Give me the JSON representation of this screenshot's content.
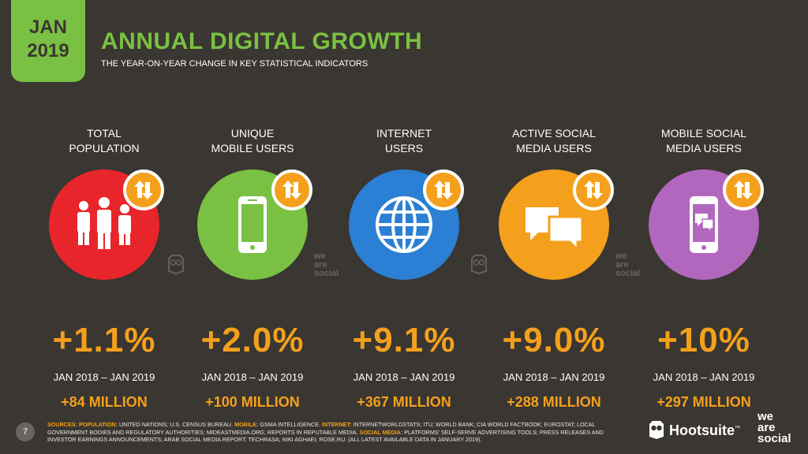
{
  "badge": {
    "line1": "JAN",
    "line2": "2019"
  },
  "header": {
    "title": "ANNUAL DIGITAL GROWTH",
    "subtitle": "THE YEAR-ON-YEAR CHANGE IN KEY STATISTICAL INDICATORS"
  },
  "stats": [
    {
      "head1": "TOTAL",
      "head2": "POPULATION",
      "pct": "+1.1%",
      "range": "JAN 2018 – JAN 2019",
      "abs": "+84 MILLION",
      "color": "#e8252a",
      "icon": "people-icon"
    },
    {
      "head1": "UNIQUE",
      "head2": "MOBILE USERS",
      "pct": "+2.0%",
      "range": "JAN 2018 – JAN 2019",
      "abs": "+100 MILLION",
      "color": "#7ac143",
      "icon": "mobile-phone-icon"
    },
    {
      "head1": "INTERNET",
      "head2": "USERS",
      "pct": "+9.1%",
      "range": "JAN 2018 – JAN 2019",
      "abs": "+367 MILLION",
      "color": "#2b7fd4",
      "icon": "globe-icon"
    },
    {
      "head1": "ACTIVE SOCIAL",
      "head2": "MEDIA USERS",
      "pct": "+9.0%",
      "range": "JAN 2018 – JAN 2019",
      "abs": "+288 MILLION",
      "color": "#f4a01c",
      "icon": "chat-bubbles-icon"
    },
    {
      "head1": "MOBILE SOCIAL",
      "head2": "MEDIA USERS",
      "pct": "+10%",
      "range": "JAN 2018 – JAN 2019",
      "abs": "+297 MILLION",
      "color": "#b267be",
      "icon": "mobile-chat-icon"
    }
  ],
  "accent_color": "#f4a01c",
  "watermark": {
    "l1": "we",
    "l2": "are",
    "l3": "social"
  },
  "footer": {
    "page_number": "7",
    "sources_label": "SOURCES:",
    "pop_label": "POPULATION:",
    "pop_text": "UNITED NATIONS; U.S. CENSUS BUREAU.",
    "mobile_label": "MOBILE:",
    "mobile_text": "GSMA INTELLIGENCE.",
    "internet_label": "INTERNET:",
    "internet_text": "INTERNETWORLDSTATS; ITU; WORLD BANK; CIA WORLD FACTBOOK; EUROSTAT; LOCAL GOVERNMENT BODIES AND REGULATORY AUTHORITIES; MIDEASTMEDIA.ORG; REPORTS IN REPUTABLE MEDIA.",
    "social_label": "SOCIAL MEDIA:",
    "social_text": "PLATFORMS' SELF-SERVE ADVERTISING TOOLS; PRESS RELEASES AND INVESTOR EARNINGS ANNOUNCEMENTS; ARAB SOCIAL MEDIA REPORT; TECHRASA; NIKI AGHAEI; ROSE.RU. (ALL LATEST AVAILABLE DATA IN JANUARY 2019).",
    "hootsuite": "Hootsuite",
    "tm": "™",
    "was1": "we",
    "was2": "are",
    "was3": "social"
  }
}
